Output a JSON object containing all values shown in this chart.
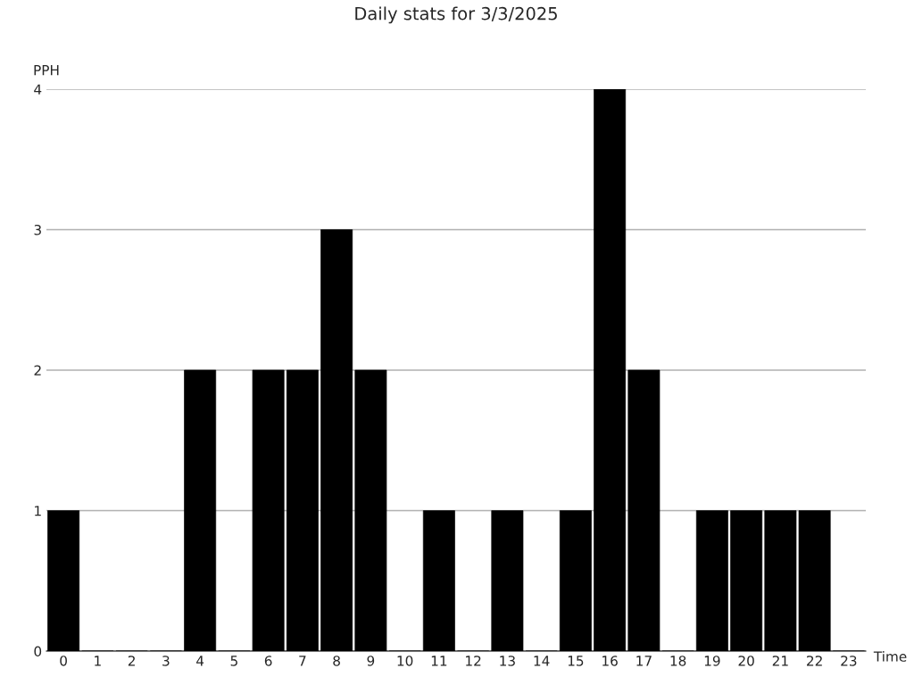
{
  "chart_data": {
    "type": "bar",
    "title": "Daily stats for 3/3/2025",
    "xlabel": "Time",
    "ylabel": "PPH",
    "categories": [
      "0",
      "1",
      "2",
      "3",
      "4",
      "5",
      "6",
      "7",
      "8",
      "9",
      "10",
      "11",
      "12",
      "13",
      "14",
      "15",
      "16",
      "17",
      "18",
      "19",
      "20",
      "21",
      "22",
      "23"
    ],
    "values": [
      1,
      0,
      0,
      0,
      2,
      0,
      2,
      2,
      3,
      2,
      0,
      1,
      0,
      1,
      0,
      1,
      4,
      2,
      0,
      1,
      1,
      1,
      1,
      0
    ],
    "color": "#000000",
    "ylim": [
      0,
      4
    ],
    "yticks": [
      0,
      1,
      2,
      3,
      4
    ],
    "grid": "y",
    "legend": false
  }
}
